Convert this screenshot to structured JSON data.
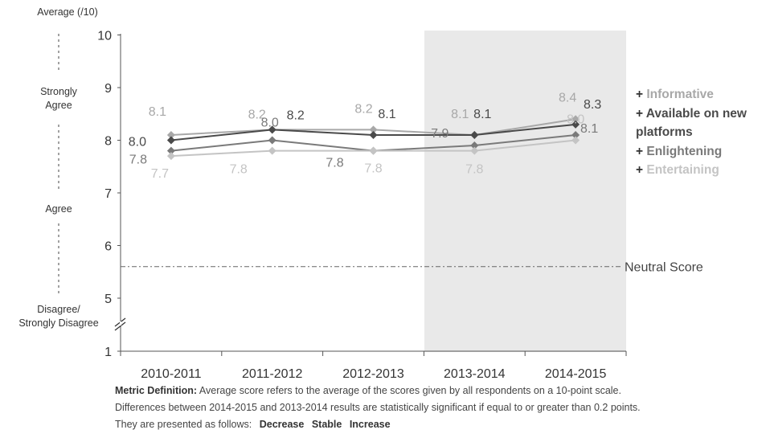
{
  "colors": {
    "Informative": "#a8a8a8",
    "Available on new platforms": "#4a4a4a",
    "Enlightening": "#7a7a7a",
    "Entertaining": "#c4c4c4"
  },
  "chart_data": {
    "type": "line",
    "title": "",
    "xlabel": "",
    "ylabel": "Average (/10)",
    "categories": [
      "2010-2011",
      "2011-2012",
      "2012-2013",
      "2013-2014",
      "2014-2015"
    ],
    "ylim": [
      1,
      10
    ],
    "y_ticks": [
      "1",
      "5",
      "6",
      "7",
      "8",
      "9",
      "10"
    ],
    "y_axis_break": "between 1 and 5",
    "grid": false,
    "highlighted_periods": [
      "2013-2014",
      "2014-2015"
    ],
    "zone_labels": [
      "Strongly Agree",
      "Agree",
      "Disagree/ Strongly Disagree"
    ],
    "reference_line": {
      "value": 5.6,
      "label": "Neutral Score"
    },
    "legend_position": "right",
    "series": [
      {
        "name": "Informative",
        "values": [
          8.1,
          8.2,
          8.2,
          8.1,
          8.4
        ],
        "labels": [
          "8.1",
          "8.2",
          "8.2",
          "8.1",
          "8.4"
        ]
      },
      {
        "name": "Available on new platforms",
        "values": [
          8.0,
          8.2,
          8.1,
          8.1,
          8.3
        ],
        "labels": [
          "8.0",
          "8.2",
          "8.1",
          "8.1",
          "8.3"
        ]
      },
      {
        "name": "Enlightening",
        "values": [
          7.8,
          8.0,
          7.8,
          7.9,
          8.1
        ],
        "labels": [
          "7.8",
          "8.0",
          "7.8",
          "7.9",
          "8.1"
        ]
      },
      {
        "name": "Entertaining",
        "values": [
          7.7,
          7.8,
          7.8,
          7.8,
          8.0
        ],
        "labels": [
          "7.7",
          "7.8",
          "7.8",
          "7.8",
          "8.0"
        ]
      }
    ]
  },
  "legend": {
    "items": [
      {
        "prefix": "+",
        "text": "Informative"
      },
      {
        "prefix": "+",
        "text": "Available on new platforms"
      },
      {
        "prefix": "+",
        "text": "Enlightening"
      },
      {
        "prefix": "+",
        "text": "Entertaining"
      }
    ]
  },
  "notes": {
    "def_label": "Metric Definition:",
    "def_text": "Average score refers to the average of the scores given by all respondents on a 10-point scale.",
    "line2": "Differences between 2014-2015 and 2013-2014 results are statistically significant if equal to or greater than 0.2 points.",
    "line3": "They are presented as follows:",
    "decrease": "Decrease",
    "stable": "Stable",
    "increase": "Increase"
  }
}
